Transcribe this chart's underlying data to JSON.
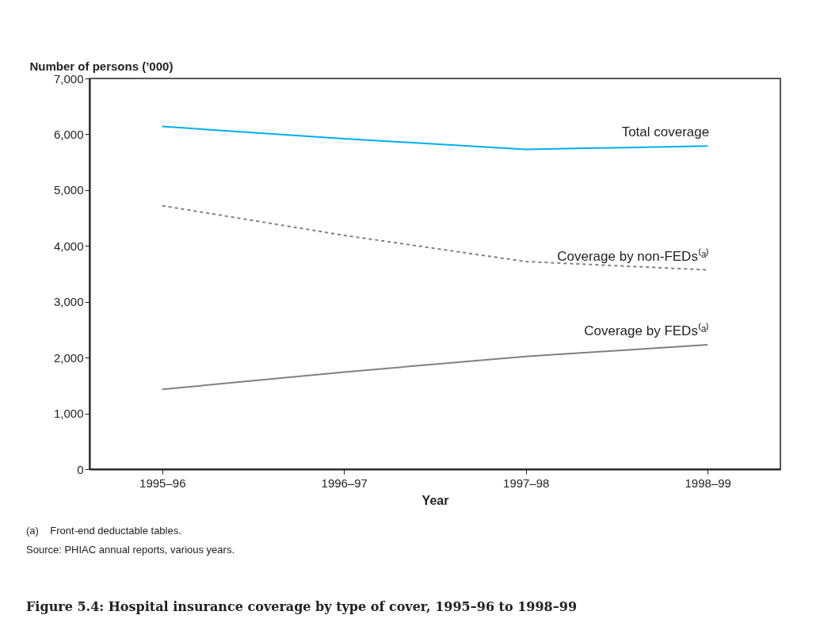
{
  "chart_data": {
    "type": "line",
    "title": "Figure 5.4: Hospital insurance coverage by type of cover, 1995–96 to 1998–99",
    "xlabel": "Year",
    "ylabel": "Number of persons (’000)",
    "categories": [
      "1995–96",
      "1996–97",
      "1997–98",
      "1998–99"
    ],
    "series": [
      {
        "name": "Total coverage",
        "color": "#00aeef",
        "line_style": "solid",
        "values": [
          6140,
          5920,
          5730,
          5790
        ]
      },
      {
        "name": "Coverage by non-FEDs⁽ᵃ⁾",
        "color": "#808080",
        "line_style": "dashed",
        "values": [
          4720,
          4190,
          3720,
          3570
        ]
      },
      {
        "name": "Coverage by FEDs⁽ᵃ⁾",
        "color": "#808080",
        "line_style": "solid",
        "values": [
          1430,
          1740,
          2020,
          2230
        ]
      }
    ],
    "ylim": [
      0,
      7000
    ],
    "yticks": [
      0,
      {
        "value": 1000,
        "label": "1,000"
      },
      {
        "value": 2000,
        "label": "2,000"
      },
      {
        "value": 3000,
        "label": "3,000"
      },
      {
        "value": 4000,
        "label": "4,000"
      },
      {
        "value": 5000,
        "label": "5,000"
      },
      {
        "value": 6000,
        "label": "6,000"
      },
      {
        "value": 7000,
        "label": "7,000"
      }
    ],
    "grid": false,
    "legend": false,
    "marker": "none",
    "annotations": [
      "(a)    Front-end deductable tables.",
      "Source: PHIAC annual reports, various years."
    ]
  }
}
